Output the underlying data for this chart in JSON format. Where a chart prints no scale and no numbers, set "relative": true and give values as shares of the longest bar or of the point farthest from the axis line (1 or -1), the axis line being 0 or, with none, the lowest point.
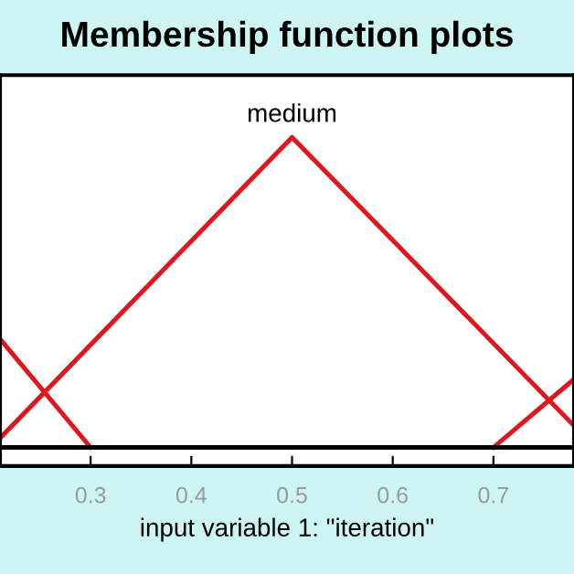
{
  "chart_data": {
    "type": "line",
    "title": "Membership function plots",
    "xlabel": "input variable 1: \"iteration\"",
    "relative": true,
    "series": [
      {
        "color": "#e0161e",
        "x": [
          0.21,
          0.3
        ],
        "values": [
          0.35,
          0
        ]
      },
      {
        "name": "medium",
        "color": "#e0161e",
        "x": [
          0.21,
          0.5,
          0.78
        ],
        "values": [
          0.03,
          1,
          0.07
        ]
      },
      {
        "color": "#e0161e",
        "x": [
          0.7,
          0.78
        ],
        "values": [
          0,
          0.22
        ]
      }
    ],
    "xlim": [
      0.21,
      0.78
    ],
    "xticks": [
      0.3,
      0.4,
      0.5,
      0.6,
      0.7
    ],
    "tick_labels": "x",
    "grid": false,
    "legend": false,
    "marker": "none",
    "line_style": "solid"
  }
}
